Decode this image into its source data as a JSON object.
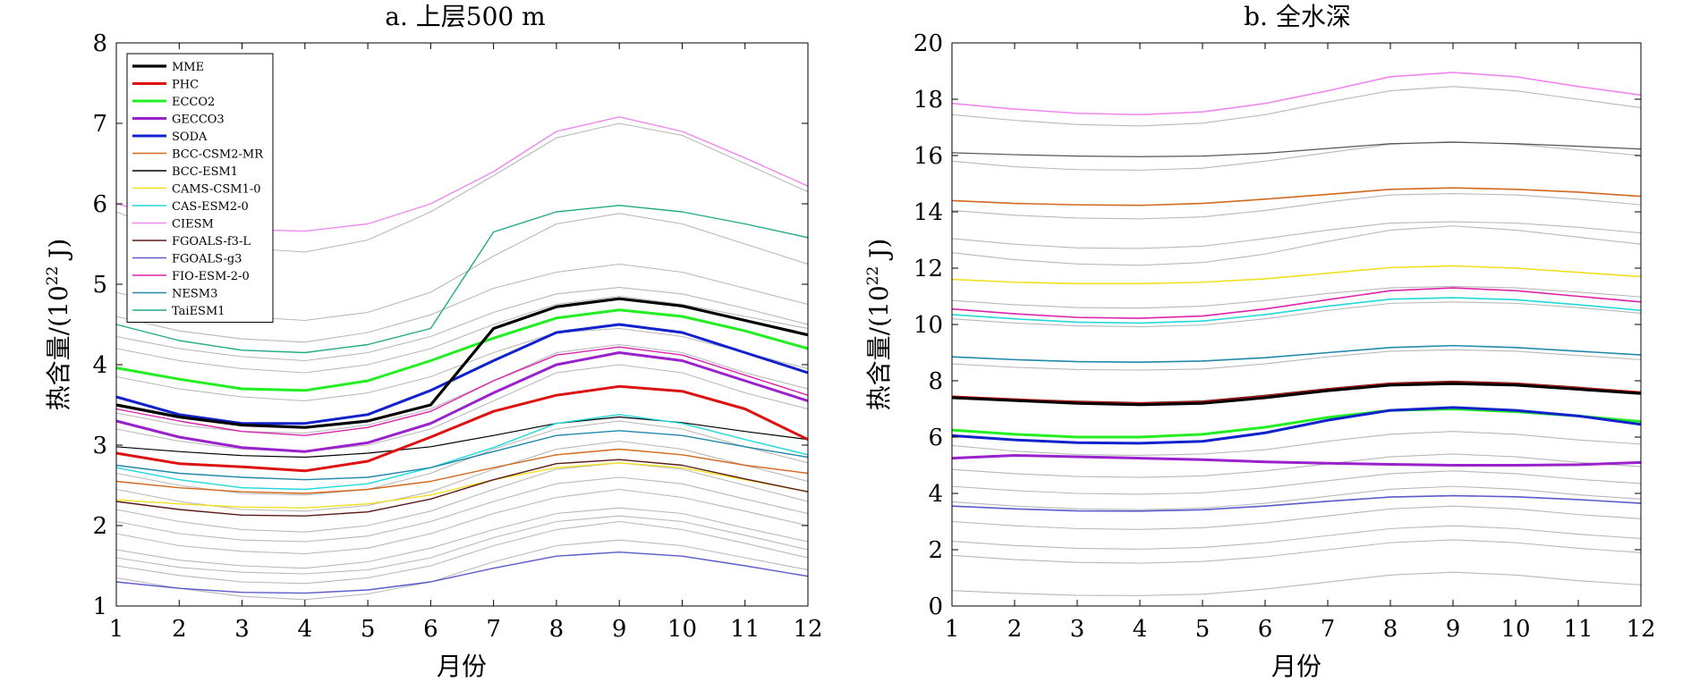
{
  "chart_data": [
    {
      "type": "line",
      "title": "a. 上层500 m",
      "xlabel": "月份",
      "ylabel": "热含量/(10²² J)",
      "ylabel_base": "热含量/(10",
      "ylabel_exp": "22",
      "ylabel_unit": " J)",
      "x": [
        1,
        2,
        3,
        4,
        5,
        6,
        7,
        8,
        9,
        10,
        11,
        12
      ],
      "xticks": [
        "1",
        "2",
        "3",
        "4",
        "5",
        "6",
        "7",
        "8",
        "9",
        "10",
        "11",
        "12"
      ],
      "yticks": [
        "1",
        "2",
        "3",
        "4",
        "5",
        "6",
        "7",
        "8"
      ],
      "xlim": [
        1,
        12
      ],
      "ylim": [
        1,
        8
      ],
      "legend": "top-left",
      "series": [
        {
          "name": "MME",
          "color": "#000000",
          "width": 3.2,
          "values": [
            3.5,
            3.35,
            3.25,
            3.22,
            3.3,
            3.5,
            4.45,
            4.72,
            4.82,
            4.73,
            4.55,
            4.37
          ]
        },
        {
          "name": "PHC",
          "color": "#dd1111",
          "width": 3.0,
          "values": [
            2.9,
            2.77,
            2.73,
            2.68,
            2.8,
            3.1,
            3.42,
            3.62,
            3.73,
            3.67,
            3.45,
            3.07
          ]
        },
        {
          "name": "ECCO2",
          "color": "#22ee22",
          "width": 3.0,
          "values": [
            3.96,
            3.82,
            3.7,
            3.68,
            3.8,
            4.05,
            4.33,
            4.58,
            4.68,
            4.6,
            4.42,
            4.2
          ]
        },
        {
          "name": "GECCO3",
          "color": "#9922cc",
          "width": 3.0,
          "values": [
            3.3,
            3.1,
            2.97,
            2.92,
            3.03,
            3.27,
            3.65,
            4.0,
            4.15,
            4.05,
            3.8,
            3.55
          ]
        },
        {
          "name": "SODA",
          "color": "#1122cc",
          "width": 3.0,
          "values": [
            3.6,
            3.38,
            3.27,
            3.27,
            3.38,
            3.68,
            4.05,
            4.4,
            4.5,
            4.4,
            4.15,
            3.9
          ]
        },
        {
          "name": "BCC-CSM2-MR",
          "color": "#d2691e",
          "width": 1.4,
          "values": [
            2.55,
            2.47,
            2.42,
            2.4,
            2.45,
            2.55,
            2.72,
            2.88,
            2.95,
            2.88,
            2.75,
            2.65
          ]
        },
        {
          "name": "BCC-ESM1",
          "color": "#000000",
          "width": 1.2,
          "values": [
            2.98,
            2.92,
            2.87,
            2.85,
            2.9,
            2.98,
            3.12,
            3.27,
            3.35,
            3.28,
            3.17,
            3.07
          ]
        },
        {
          "name": "CAMS-CSM1-0",
          "color": "#f0e020",
          "width": 1.4,
          "values": [
            2.32,
            2.27,
            2.23,
            2.22,
            2.27,
            2.38,
            2.57,
            2.72,
            2.78,
            2.72,
            2.57,
            2.42
          ]
        },
        {
          "name": "CAS-ESM2-0",
          "color": "#22d8d8",
          "width": 1.4,
          "values": [
            2.72,
            2.57,
            2.47,
            2.45,
            2.52,
            2.72,
            2.97,
            3.27,
            3.38,
            3.27,
            3.07,
            2.88
          ]
        },
        {
          "name": "CIESM",
          "color": "#ee88ee",
          "width": 1.4,
          "values": [
            6.0,
            5.8,
            5.68,
            5.66,
            5.75,
            6.0,
            6.4,
            6.9,
            7.08,
            6.9,
            6.57,
            6.22
          ]
        },
        {
          "name": "FGOALS-f3-L",
          "color": "#5a1a1a",
          "width": 1.4,
          "values": [
            2.3,
            2.2,
            2.13,
            2.12,
            2.17,
            2.33,
            2.57,
            2.77,
            2.82,
            2.75,
            2.58,
            2.42
          ]
        },
        {
          "name": "FGOALS-g3",
          "color": "#5a5acd",
          "width": 1.4,
          "values": [
            1.3,
            1.22,
            1.17,
            1.16,
            1.2,
            1.3,
            1.47,
            1.62,
            1.67,
            1.62,
            1.5,
            1.37
          ]
        },
        {
          "name": "FIO-ESM-2-0",
          "color": "#dd22aa",
          "width": 1.4,
          "values": [
            3.45,
            3.3,
            3.17,
            3.12,
            3.22,
            3.42,
            3.8,
            4.12,
            4.22,
            4.12,
            3.87,
            3.62
          ]
        },
        {
          "name": "NESM3",
          "color": "#2288aa",
          "width": 1.4,
          "values": [
            2.75,
            2.65,
            2.6,
            2.57,
            2.6,
            2.72,
            2.92,
            3.12,
            3.18,
            3.12,
            2.98,
            2.85
          ]
        },
        {
          "name": "TaiESM1",
          "color": "#22aa88",
          "width": 1.4,
          "values": [
            4.5,
            4.3,
            4.18,
            4.15,
            4.25,
            4.45,
            5.65,
            5.9,
            5.98,
            5.9,
            5.75,
            5.58
          ]
        }
      ],
      "background_lines": [
        [
          5.9,
          5.6,
          5.45,
          5.4,
          5.55,
          5.9,
          6.35,
          6.82,
          7.0,
          6.85,
          6.5,
          6.15
        ],
        [
          4.9,
          4.7,
          4.6,
          4.55,
          4.65,
          4.9,
          5.35,
          5.75,
          5.88,
          5.75,
          5.5,
          5.25
        ],
        [
          4.6,
          4.42,
          4.32,
          4.28,
          4.4,
          4.62,
          4.95,
          5.15,
          5.25,
          5.15,
          4.95,
          4.75
        ],
        [
          4.35,
          4.2,
          4.1,
          4.05,
          4.15,
          4.35,
          4.65,
          4.88,
          4.96,
          4.88,
          4.7,
          4.5
        ],
        [
          4.2,
          4.05,
          3.95,
          3.9,
          4.0,
          4.2,
          4.5,
          4.75,
          4.85,
          4.75,
          4.6,
          4.45
        ],
        [
          3.85,
          3.7,
          3.6,
          3.55,
          3.65,
          3.85,
          4.15,
          4.4,
          4.45,
          4.35,
          4.15,
          3.95
        ],
        [
          3.4,
          3.25,
          3.17,
          3.15,
          3.25,
          3.45,
          3.8,
          4.15,
          4.25,
          4.15,
          3.9,
          3.7
        ],
        [
          3.2,
          3.05,
          2.95,
          2.92,
          3.0,
          3.2,
          3.55,
          3.9,
          4.0,
          3.9,
          3.65,
          3.45
        ],
        [
          2.65,
          2.5,
          2.4,
          2.38,
          2.45,
          2.65,
          2.95,
          3.2,
          3.3,
          3.2,
          2.98,
          2.78
        ],
        [
          2.45,
          2.3,
          2.2,
          2.18,
          2.25,
          2.42,
          2.7,
          2.95,
          3.05,
          2.95,
          2.75,
          2.55
        ],
        [
          2.2,
          2.05,
          1.95,
          1.92,
          2.0,
          2.18,
          2.45,
          2.7,
          2.78,
          2.7,
          2.5,
          2.3
        ],
        [
          2.05,
          1.9,
          1.82,
          1.8,
          1.87,
          2.05,
          2.3,
          2.52,
          2.6,
          2.52,
          2.33,
          2.15
        ],
        [
          1.9,
          1.75,
          1.68,
          1.65,
          1.72,
          1.9,
          2.15,
          2.35,
          2.45,
          2.35,
          2.18,
          2.0
        ],
        [
          1.7,
          1.57,
          1.5,
          1.47,
          1.55,
          1.72,
          1.95,
          2.15,
          2.22,
          2.15,
          1.97,
          1.8
        ],
        [
          1.6,
          1.48,
          1.42,
          1.4,
          1.45,
          1.6,
          1.85,
          2.05,
          2.12,
          2.05,
          1.88,
          1.7
        ],
        [
          1.5,
          1.38,
          1.3,
          1.28,
          1.35,
          1.5,
          1.75,
          1.95,
          2.05,
          1.95,
          1.78,
          1.6
        ],
        [
          1.35,
          1.22,
          1.12,
          1.08,
          1.15,
          1.3,
          1.55,
          1.75,
          1.82,
          1.75,
          1.6,
          1.45
        ]
      ]
    },
    {
      "type": "line",
      "title": "b. 全水深",
      "xlabel": "月份",
      "ylabel": "热含量/(10²² J)",
      "ylabel_base": "热含量/(10",
      "ylabel_exp": "22",
      "ylabel_unit": " J)",
      "x": [
        1,
        2,
        3,
        4,
        5,
        6,
        7,
        8,
        9,
        10,
        11,
        12
      ],
      "xticks": [
        "1",
        "2",
        "3",
        "4",
        "5",
        "6",
        "7",
        "8",
        "9",
        "10",
        "11",
        "12"
      ],
      "yticks": [
        "0",
        "2",
        "4",
        "6",
        "8",
        "10",
        "12",
        "14",
        "16",
        "18",
        "20"
      ],
      "xlim": [
        1,
        12
      ],
      "ylim": [
        0,
        20
      ],
      "series": [
        {
          "name": "MME",
          "color": "#000000",
          "width": 3.2,
          "values": [
            7.4,
            7.3,
            7.2,
            7.15,
            7.2,
            7.4,
            7.65,
            7.85,
            7.9,
            7.85,
            7.7,
            7.55
          ]
        },
        {
          "name": "PHC",
          "color": "#dd1111",
          "width": 1.6,
          "values": [
            7.45,
            7.35,
            7.25,
            7.2,
            7.25,
            7.45,
            7.7,
            7.9,
            7.95,
            7.9,
            7.75,
            7.6
          ]
        },
        {
          "name": "ECCO2",
          "color": "#22ee22",
          "width": 3.0,
          "values": [
            6.25,
            6.1,
            6.0,
            6.0,
            6.1,
            6.35,
            6.7,
            6.95,
            7.0,
            6.9,
            6.75,
            6.55
          ]
        },
        {
          "name": "GECCO3",
          "color": "#9922cc",
          "width": 3.0,
          "values": [
            5.25,
            5.35,
            5.3,
            5.25,
            5.2,
            5.12,
            5.07,
            5.03,
            5.0,
            5.0,
            5.02,
            5.1
          ]
        },
        {
          "name": "SODA",
          "color": "#1122cc",
          "width": 3.0,
          "values": [
            6.05,
            5.9,
            5.8,
            5.78,
            5.85,
            6.15,
            6.6,
            6.95,
            7.05,
            6.95,
            6.75,
            6.45
          ]
        },
        {
          "name": "BCC-CSM2-MR",
          "color": "#d2691e",
          "width": 1.6,
          "values": [
            14.4,
            14.3,
            14.25,
            14.23,
            14.3,
            14.45,
            14.62,
            14.8,
            14.85,
            14.8,
            14.7,
            14.55
          ]
        },
        {
          "name": "BCC-ESM1",
          "color": "#555555",
          "width": 1.2,
          "values": [
            16.1,
            16.03,
            15.98,
            15.96,
            15.98,
            16.08,
            16.25,
            16.42,
            16.47,
            16.42,
            16.33,
            16.23
          ]
        },
        {
          "name": "CAMS-CSM1-0",
          "color": "#f0e020",
          "width": 1.6,
          "values": [
            11.6,
            11.5,
            11.45,
            11.45,
            11.5,
            11.62,
            11.82,
            12.02,
            12.08,
            12.0,
            11.85,
            11.7
          ]
        },
        {
          "name": "CAS-ESM2-0",
          "color": "#22d8d8",
          "width": 1.6,
          "values": [
            10.35,
            10.2,
            10.08,
            10.05,
            10.12,
            10.35,
            10.65,
            10.9,
            10.95,
            10.88,
            10.7,
            10.5
          ]
        },
        {
          "name": "CIESM",
          "color": "#ee88ee",
          "width": 1.6,
          "values": [
            17.85,
            17.65,
            17.5,
            17.45,
            17.55,
            17.85,
            18.3,
            18.8,
            18.95,
            18.8,
            18.45,
            18.15
          ]
        },
        {
          "name": "FGOALS-f3-L",
          "color": "#5a1a1a",
          "width": 1.4,
          "values": [
            7.45,
            7.35,
            7.27,
            7.22,
            7.28,
            7.48,
            7.72,
            7.92,
            7.98,
            7.92,
            7.77,
            7.6
          ]
        },
        {
          "name": "FGOALS-g3",
          "color": "#5a5acd",
          "width": 1.6,
          "values": [
            3.55,
            3.45,
            3.38,
            3.37,
            3.42,
            3.55,
            3.72,
            3.87,
            3.92,
            3.88,
            3.78,
            3.65
          ]
        },
        {
          "name": "FIO-ESM-2-0",
          "color": "#dd22aa",
          "width": 1.6,
          "values": [
            10.55,
            10.38,
            10.25,
            10.22,
            10.3,
            10.55,
            10.88,
            11.2,
            11.3,
            11.2,
            11.0,
            10.8
          ]
        },
        {
          "name": "NESM3",
          "color": "#2288aa",
          "width": 1.6,
          "values": [
            8.85,
            8.75,
            8.68,
            8.66,
            8.7,
            8.82,
            9.0,
            9.18,
            9.25,
            9.18,
            9.05,
            8.92
          ]
        },
        {
          "name": "TaiESM1",
          "color": "#22aa88",
          "width": 1.4,
          "values": [
            7.42,
            7.32,
            7.23,
            7.18,
            7.23,
            7.43,
            7.68,
            7.88,
            7.93,
            7.88,
            7.73,
            7.57
          ]
        }
      ],
      "background_lines": [
        [
          17.45,
          17.25,
          17.1,
          17.05,
          17.15,
          17.45,
          17.9,
          18.3,
          18.45,
          18.3,
          18.0,
          17.7
        ],
        [
          15.8,
          15.6,
          15.5,
          15.48,
          15.55,
          15.8,
          16.1,
          16.4,
          16.5,
          16.4,
          16.2,
          16.0
        ],
        [
          14.05,
          13.88,
          13.78,
          13.75,
          13.82,
          14.05,
          14.35,
          14.6,
          14.65,
          14.6,
          14.45,
          14.25
        ],
        [
          13.05,
          12.85,
          12.72,
          12.7,
          12.78,
          13.05,
          13.35,
          13.6,
          13.65,
          13.6,
          13.45,
          13.25
        ],
        [
          12.55,
          12.3,
          12.15,
          12.1,
          12.2,
          12.5,
          12.95,
          13.35,
          13.5,
          13.35,
          13.1,
          12.85
        ],
        [
          10.85,
          10.7,
          10.6,
          10.58,
          10.65,
          10.85,
          11.1,
          11.3,
          11.35,
          11.3,
          11.15,
          10.98
        ],
        [
          10.2,
          10.05,
          9.95,
          9.92,
          9.98,
          10.2,
          10.5,
          10.75,
          10.8,
          10.75,
          10.6,
          10.4
        ],
        [
          8.6,
          8.48,
          8.4,
          8.38,
          8.42,
          8.6,
          8.85,
          9.05,
          9.1,
          9.05,
          8.9,
          8.75
        ],
        [
          5.7,
          5.5,
          5.38,
          5.35,
          5.4,
          5.55,
          5.85,
          6.1,
          6.2,
          6.1,
          5.9,
          5.75
        ],
        [
          4.85,
          4.7,
          4.6,
          4.57,
          4.62,
          4.8,
          5.05,
          5.3,
          5.4,
          5.3,
          5.1,
          4.95
        ],
        [
          4.25,
          4.1,
          4.0,
          3.97,
          4.02,
          4.2,
          4.45,
          4.7,
          4.8,
          4.7,
          4.5,
          4.35
        ],
        [
          3.7,
          3.55,
          3.45,
          3.42,
          3.48,
          3.65,
          3.9,
          4.15,
          4.25,
          4.15,
          3.95,
          3.8
        ],
        [
          3.0,
          2.85,
          2.75,
          2.72,
          2.78,
          2.95,
          3.2,
          3.45,
          3.55,
          3.45,
          3.25,
          3.1
        ],
        [
          2.3,
          2.15,
          2.05,
          2.02,
          2.08,
          2.25,
          2.5,
          2.75,
          2.85,
          2.75,
          2.55,
          2.4
        ],
        [
          1.8,
          1.65,
          1.55,
          1.52,
          1.58,
          1.75,
          2.0,
          2.25,
          2.35,
          2.25,
          2.05,
          1.9
        ],
        [
          0.55,
          0.45,
          0.38,
          0.37,
          0.42,
          0.6,
          0.85,
          1.1,
          1.2,
          1.1,
          0.9,
          0.75
        ]
      ]
    }
  ]
}
